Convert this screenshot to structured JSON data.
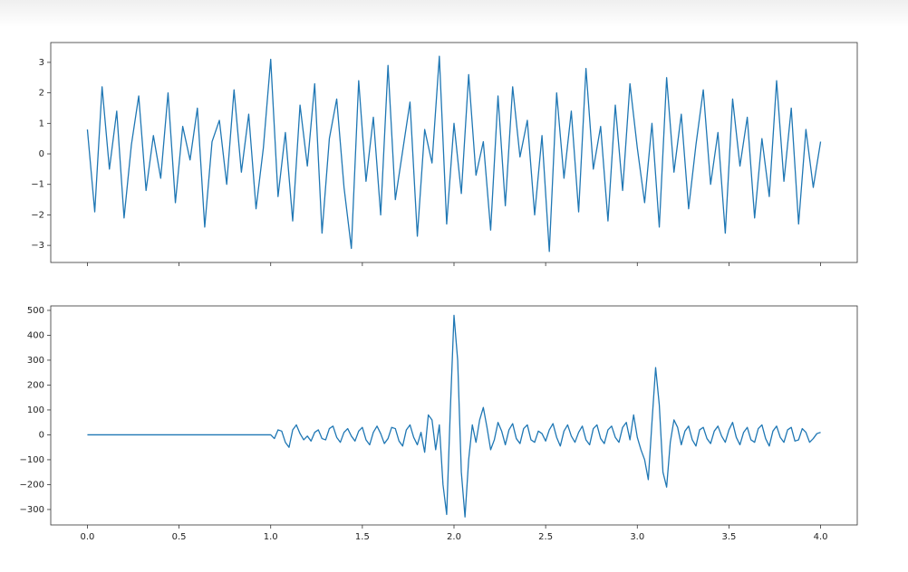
{
  "chart_data": [
    {
      "type": "line",
      "xlim": [
        -0.2,
        4.2
      ],
      "ylim": [
        -3.56,
        3.65
      ],
      "xticks": [
        0,
        0.5,
        1,
        1.5,
        2,
        2.5,
        3,
        3.5,
        4
      ],
      "xtick_labels": false,
      "yticks": [
        {
          "value": -3,
          "label": "−3"
        },
        {
          "value": -2,
          "label": "−2"
        },
        {
          "value": -1,
          "label": "−1"
        },
        0,
        1,
        2,
        3
      ],
      "x": [
        0,
        0.04,
        0.08,
        0.12,
        0.16,
        0.2,
        0.24,
        0.28,
        0.32,
        0.36,
        0.4,
        0.44,
        0.48,
        0.52,
        0.56,
        0.6,
        0.64,
        0.68,
        0.72,
        0.76,
        0.8,
        0.84,
        0.88,
        0.92,
        0.96,
        1.0,
        1.04,
        1.08,
        1.12,
        1.16,
        1.2,
        1.24,
        1.28,
        1.32,
        1.36,
        1.4,
        1.44,
        1.48,
        1.52,
        1.56,
        1.6,
        1.64,
        1.68,
        1.72,
        1.76,
        1.8,
        1.84,
        1.88,
        1.92,
        1.96,
        2.0,
        2.04,
        2.08,
        2.12,
        2.16,
        2.2,
        2.24,
        2.28,
        2.32,
        2.36,
        2.4,
        2.44,
        2.48,
        2.52,
        2.56,
        2.6,
        2.64,
        2.68,
        2.72,
        2.76,
        2.8,
        2.84,
        2.88,
        2.92,
        2.96,
        3.0,
        3.04,
        3.08,
        3.12,
        3.16,
        3.2,
        3.24,
        3.28,
        3.32,
        3.36,
        3.4,
        3.44,
        3.48,
        3.52,
        3.56,
        3.6,
        3.64,
        3.68,
        3.72,
        3.76,
        3.8,
        3.84,
        3.88,
        3.92,
        3.96,
        4.0
      ],
      "series": [
        {
          "color": "#1f77b4",
          "values": [
            0.8,
            -1.9,
            2.2,
            -0.5,
            1.4,
            -2.1,
            0.3,
            1.9,
            -1.2,
            0.6,
            -0.8,
            2.0,
            -1.6,
            0.9,
            -0.2,
            1.5,
            -2.4,
            0.4,
            1.1,
            -1.0,
            2.1,
            -0.6,
            1.3,
            -1.8,
            0.2,
            3.1,
            -1.4,
            0.7,
            -2.2,
            1.6,
            -0.4,
            2.3,
            -2.6,
            0.5,
            1.8,
            -1.1,
            -3.1,
            2.4,
            -0.9,
            1.2,
            -2.0,
            2.9,
            -1.5,
            0.1,
            1.7,
            -2.7,
            0.8,
            -0.3,
            3.2,
            -2.3,
            1.0,
            -1.3,
            2.6,
            -0.7,
            0.4,
            -2.5,
            1.9,
            -1.7,
            2.2,
            -0.1,
            1.1,
            -2.0,
            0.6,
            -3.2,
            2.0,
            -0.8,
            1.4,
            -1.9,
            2.8,
            -0.5,
            0.9,
            -2.2,
            1.6,
            -1.2,
            2.3,
            0.2,
            -1.6,
            1.0,
            -2.4,
            2.5,
            -0.6,
            1.3,
            -1.8,
            0.3,
            2.1,
            -1.0,
            0.7,
            -2.6,
            1.8,
            -0.4,
            1.2,
            -2.1,
            0.5,
            -1.4,
            2.4,
            -0.9,
            1.5,
            -2.3,
            0.8,
            -1.1,
            0.4
          ]
        }
      ]
    },
    {
      "type": "line",
      "xlim": [
        -0.2,
        4.2
      ],
      "ylim": [
        -362,
        518
      ],
      "xticks": [
        {
          "value": 0,
          "label": "0.0"
        },
        0.5,
        {
          "value": 1,
          "label": "1.0"
        },
        1.5,
        {
          "value": 2,
          "label": "2.0"
        },
        2.5,
        {
          "value": 3,
          "label": "3.0"
        },
        3.5,
        {
          "value": 4,
          "label": "4.0"
        }
      ],
      "xtick_labels": true,
      "yticks": [
        {
          "value": -300,
          "label": "−300"
        },
        {
          "value": -200,
          "label": "−200"
        },
        {
          "value": -100,
          "label": "−100"
        },
        0,
        100,
        200,
        300,
        400,
        500
      ],
      "x": [
        0,
        1.0,
        1.02,
        1.04,
        1.06,
        1.08,
        1.1,
        1.12,
        1.14,
        1.16,
        1.18,
        1.2,
        1.22,
        1.24,
        1.26,
        1.28,
        1.3,
        1.32,
        1.34,
        1.36,
        1.38,
        1.4,
        1.42,
        1.44,
        1.46,
        1.48,
        1.5,
        1.52,
        1.54,
        1.56,
        1.58,
        1.6,
        1.62,
        1.64,
        1.66,
        1.68,
        1.7,
        1.72,
        1.74,
        1.76,
        1.78,
        1.8,
        1.82,
        1.84,
        1.86,
        1.88,
        1.9,
        1.92,
        1.94,
        1.96,
        1.98,
        2.0,
        2.02,
        2.04,
        2.06,
        2.08,
        2.1,
        2.12,
        2.14,
        2.16,
        2.18,
        2.2,
        2.22,
        2.24,
        2.26,
        2.28,
        2.3,
        2.32,
        2.34,
        2.36,
        2.38,
        2.4,
        2.42,
        2.44,
        2.46,
        2.48,
        2.5,
        2.52,
        2.54,
        2.56,
        2.58,
        2.6,
        2.62,
        2.64,
        2.66,
        2.68,
        2.7,
        2.72,
        2.74,
        2.76,
        2.78,
        2.8,
        2.82,
        2.84,
        2.86,
        2.88,
        2.9,
        2.92,
        2.94,
        2.96,
        2.98,
        3.0,
        3.02,
        3.04,
        3.06,
        3.08,
        3.1,
        3.12,
        3.14,
        3.16,
        3.18,
        3.2,
        3.22,
        3.24,
        3.26,
        3.28,
        3.3,
        3.32,
        3.34,
        3.36,
        3.38,
        3.4,
        3.42,
        3.44,
        3.46,
        3.48,
        3.5,
        3.52,
        3.54,
        3.56,
        3.58,
        3.6,
        3.62,
        3.64,
        3.66,
        3.68,
        3.7,
        3.72,
        3.74,
        3.76,
        3.78,
        3.8,
        3.82,
        3.84,
        3.86,
        3.88,
        3.9,
        3.92,
        3.94,
        3.96,
        3.98,
        4.0
      ],
      "series": [
        {
          "color": "#1f77b4",
          "values": [
            0,
            0,
            -15,
            20,
            15,
            -30,
            -50,
            20,
            40,
            5,
            -20,
            -5,
            -25,
            10,
            20,
            -15,
            -20,
            25,
            35,
            -10,
            -30,
            10,
            25,
            -5,
            -25,
            15,
            30,
            -20,
            -40,
            10,
            35,
            5,
            -35,
            -15,
            30,
            25,
            -25,
            -45,
            20,
            40,
            -10,
            -40,
            10,
            -70,
            80,
            60,
            -60,
            40,
            -200,
            -320,
            100,
            480,
            300,
            -150,
            -330,
            -100,
            40,
            -30,
            60,
            110,
            30,
            -60,
            -20,
            50,
            15,
            -40,
            20,
            45,
            -15,
            -35,
            25,
            40,
            -20,
            -30,
            15,
            5,
            -25,
            20,
            45,
            -10,
            -45,
            15,
            40,
            -5,
            -30,
            10,
            35,
            -20,
            -40,
            25,
            40,
            -15,
            -35,
            20,
            35,
            -10,
            -30,
            30,
            50,
            -20,
            80,
            -10,
            -60,
            -100,
            -180,
            50,
            270,
            120,
            -150,
            -210,
            -30,
            60,
            30,
            -40,
            15,
            35,
            -20,
            -45,
            20,
            30,
            -15,
            -35,
            15,
            35,
            -5,
            -30,
            20,
            50,
            -10,
            -40,
            10,
            30,
            -20,
            -30,
            25,
            40,
            -15,
            -45,
            15,
            35,
            -10,
            -30,
            20,
            30,
            -25,
            -20,
            25,
            10,
            -30,
            -15,
            5,
            10
          ]
        }
      ]
    }
  ]
}
